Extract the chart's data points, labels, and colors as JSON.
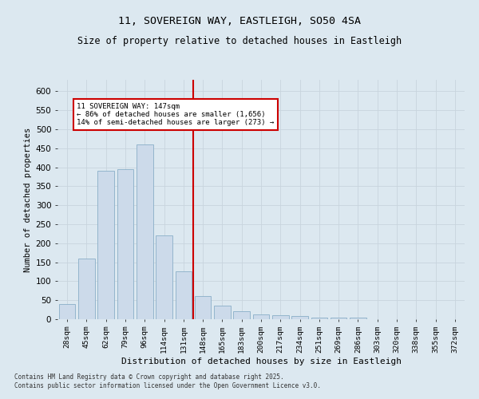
{
  "title_line1": "11, SOVEREIGN WAY, EASTLEIGH, SO50 4SA",
  "title_line2": "Size of property relative to detached houses in Eastleigh",
  "xlabel": "Distribution of detached houses by size in Eastleigh",
  "ylabel": "Number of detached properties",
  "bar_labels": [
    "28sqm",
    "45sqm",
    "62sqm",
    "79sqm",
    "96sqm",
    "114sqm",
    "131sqm",
    "148sqm",
    "165sqm",
    "183sqm",
    "200sqm",
    "217sqm",
    "234sqm",
    "251sqm",
    "269sqm",
    "286sqm",
    "303sqm",
    "320sqm",
    "338sqm",
    "355sqm",
    "372sqm"
  ],
  "bar_values": [
    40,
    160,
    390,
    395,
    460,
    220,
    125,
    60,
    35,
    20,
    13,
    10,
    8,
    5,
    5,
    4,
    0,
    0,
    0,
    0,
    0
  ],
  "bar_color": "#ccdaea",
  "bar_edgecolor": "#8aaec8",
  "vline_color": "#cc0000",
  "vline_index": 7,
  "annotation_text": "11 SOVEREIGN WAY: 147sqm\n← 86% of detached houses are smaller (1,656)\n14% of semi-detached houses are larger (273) →",
  "annotation_box_facecolor": "#ffffff",
  "annotation_box_edgecolor": "#cc0000",
  "ylim_max": 630,
  "ytick_step": 50,
  "grid_color": "#c8d4de",
  "bg_color": "#dce8f0",
  "footer_line1": "Contains HM Land Registry data © Crown copyright and database right 2025.",
  "footer_line2": "Contains public sector information licensed under the Open Government Licence v3.0."
}
